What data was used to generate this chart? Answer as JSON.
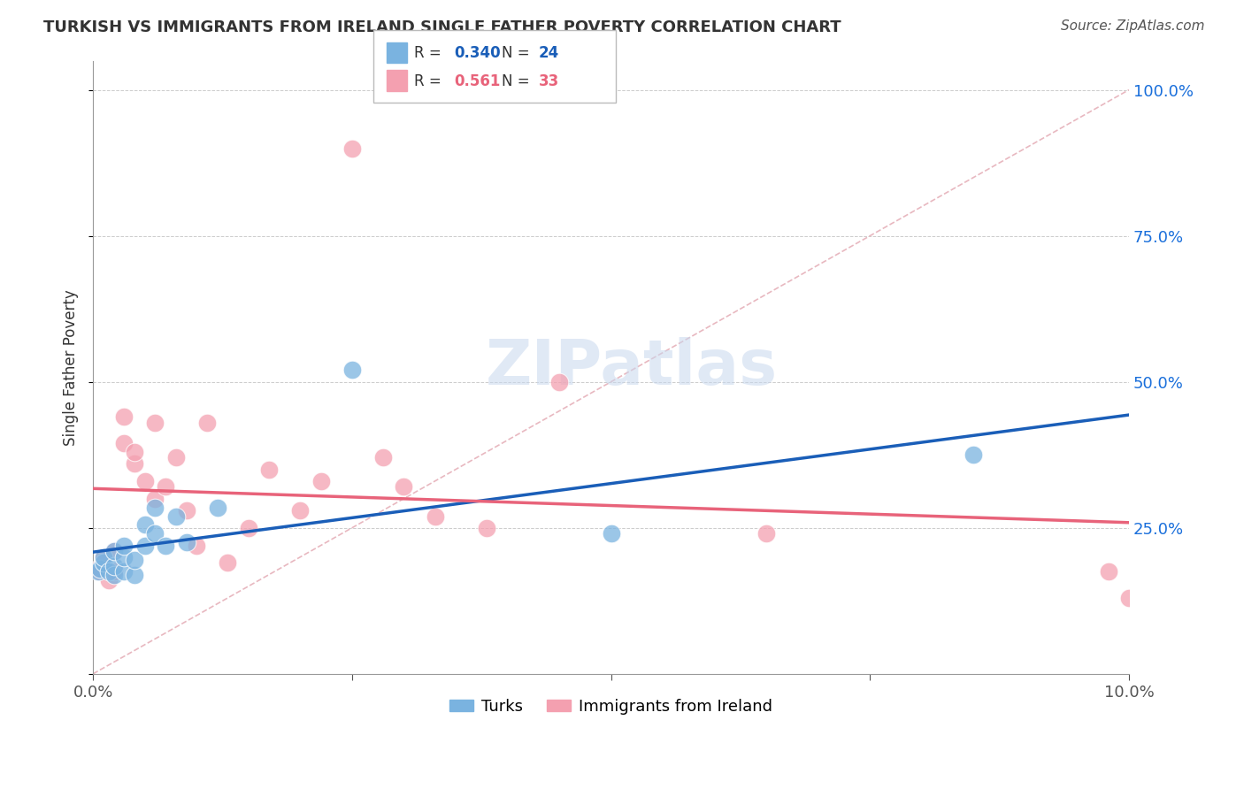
{
  "title": "TURKISH VS IMMIGRANTS FROM IRELAND SINGLE FATHER POVERTY CORRELATION CHART",
  "source": "Source: ZipAtlas.com",
  "ylabel": "Single Father Poverty",
  "y_ticks": [
    0.0,
    0.25,
    0.5,
    0.75,
    1.0
  ],
  "y_tick_labels": [
    "",
    "25.0%",
    "50.0%",
    "75.0%",
    "100.0%"
  ],
  "x_ticks": [
    0.0,
    0.025,
    0.05,
    0.075,
    0.1
  ],
  "turks_x": [
    0.0005,
    0.0007,
    0.001,
    0.001,
    0.0015,
    0.002,
    0.002,
    0.002,
    0.003,
    0.003,
    0.003,
    0.004,
    0.004,
    0.005,
    0.005,
    0.006,
    0.006,
    0.007,
    0.008,
    0.009,
    0.012,
    0.025,
    0.05,
    0.085
  ],
  "turks_y": [
    0.175,
    0.18,
    0.19,
    0.2,
    0.175,
    0.17,
    0.185,
    0.21,
    0.175,
    0.2,
    0.22,
    0.17,
    0.195,
    0.22,
    0.255,
    0.24,
    0.285,
    0.22,
    0.27,
    0.225,
    0.285,
    0.52,
    0.24,
    0.375
  ],
  "ireland_x": [
    0.0005,
    0.0007,
    0.001,
    0.001,
    0.0015,
    0.002,
    0.002,
    0.003,
    0.003,
    0.004,
    0.004,
    0.005,
    0.006,
    0.006,
    0.007,
    0.008,
    0.009,
    0.01,
    0.011,
    0.013,
    0.015,
    0.017,
    0.02,
    0.022,
    0.025,
    0.028,
    0.03,
    0.033,
    0.038,
    0.045,
    0.065,
    0.098,
    0.1
  ],
  "ireland_y": [
    0.18,
    0.175,
    0.19,
    0.2,
    0.16,
    0.175,
    0.21,
    0.395,
    0.44,
    0.36,
    0.38,
    0.33,
    0.43,
    0.3,
    0.32,
    0.37,
    0.28,
    0.22,
    0.43,
    0.19,
    0.25,
    0.35,
    0.28,
    0.33,
    0.9,
    0.37,
    0.32,
    0.27,
    0.25,
    0.5,
    0.24,
    0.175,
    0.13
  ],
  "turks_color": "#7ab3e0",
  "ireland_color": "#f4a0b0",
  "turks_line_color": "#1a5eb8",
  "ireland_line_color": "#e8637a",
  "turks_R": 0.34,
  "turks_N": 24,
  "ireland_R": 0.561,
  "ireland_N": 33,
  "ref_line_color": "#e8b8c0",
  "background_color": "#ffffff",
  "xmin": 0.0,
  "xmax": 0.1,
  "ymin": 0.0,
  "ymax": 1.05
}
